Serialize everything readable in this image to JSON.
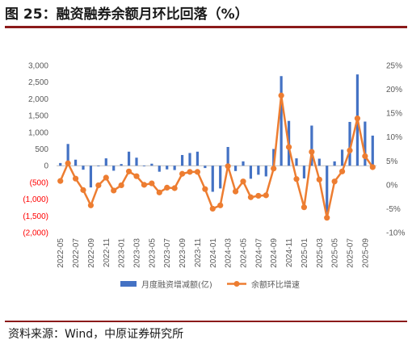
{
  "title": "图 25：融资融券余额月环比回落（%）",
  "source": "资料来源：Wind，中原证券研究所",
  "chart_data": {
    "type": "bar",
    "x": [
      "2022-05",
      "2022-06",
      "2022-07",
      "2022-08",
      "2022-09",
      "2022-10",
      "2022-11",
      "2022-12",
      "2023-01",
      "2023-02",
      "2023-03",
      "2023-04",
      "2023-05",
      "2023-06",
      "2023-07",
      "2023-08",
      "2023-09",
      "2023-10",
      "2023-11",
      "2023-12",
      "2024-01",
      "2024-02",
      "2024-03",
      "2024-04",
      "2024-05",
      "2024-06",
      "2024-07",
      "2024-08",
      "2024-09",
      "2024-10",
      "2024-11",
      "2024-12",
      "2025-01",
      "2025-02",
      "2025-03",
      "2025-04",
      "2025-05",
      "2025-06",
      "2025-07",
      "2025-08",
      "2025-09",
      "2025-10"
    ],
    "x_tick_labels": [
      "2022-05",
      "2022-07",
      "2022-09",
      "2022-11",
      "2023-01",
      "2023-03",
      "2023-05",
      "2023-07",
      "2023-09",
      "2023-11",
      "2024-01",
      "2024-03",
      "2024-05",
      "2024-07",
      "2024-09",
      "2024-11",
      "2025-01",
      "2025-03",
      "2025-05",
      "2025-07",
      "2025-09"
    ],
    "series": [
      {
        "name": "月度融资增减额(亿)",
        "type": "bar",
        "axis": "left",
        "color": "#4472c4",
        "values": [
          80,
          650,
          180,
          -120,
          -650,
          -20,
          220,
          -150,
          50,
          420,
          240,
          -20,
          60,
          -180,
          -110,
          -130,
          320,
          380,
          420,
          -70,
          -780,
          -680,
          560,
          -160,
          130,
          -390,
          -270,
          -320,
          500,
          2680,
          1340,
          220,
          -380,
          1200,
          210,
          -1400,
          130,
          480,
          1310,
          2730,
          1320,
          900
        ]
      },
      {
        "name": "余额环比增速",
        "type": "line",
        "axis": "right",
        "unit": "%",
        "color": "#ed7d31",
        "values": [
          0.8,
          4.5,
          1.3,
          -1.1,
          -4.3,
          -0.1,
          1.5,
          -1.2,
          -0.1,
          2.8,
          1.8,
          0,
          0.3,
          -1.6,
          -0.6,
          -0.7,
          2.3,
          2.7,
          2.7,
          -0.9,
          -5.0,
          -4.3,
          3.9,
          -1.4,
          0.7,
          -2.6,
          -2.3,
          -2.2,
          3.4,
          18.7,
          7.9,
          1.2,
          -4.7,
          6.9,
          1.1,
          -6.9,
          0.7,
          2.8,
          7.2,
          13.9,
          6.0,
          3.7
        ]
      }
    ],
    "y_left": {
      "ylim": [
        -2000,
        3000
      ],
      "ticks": [
        "3,000",
        "2,500",
        "2,000",
        "1,500",
        "1,000",
        "500",
        "0",
        "(500)",
        "(1,000)",
        "(1,500)",
        "(2,000)"
      ],
      "negative_color": "#ff0000"
    },
    "y_right": {
      "ylim": [
        -10,
        25
      ],
      "ticks": [
        "25%",
        "20%",
        "15%",
        "10%",
        "5%",
        "0%",
        "-5%",
        "-10%"
      ]
    },
    "grid": false,
    "legend_position": "bottom"
  }
}
